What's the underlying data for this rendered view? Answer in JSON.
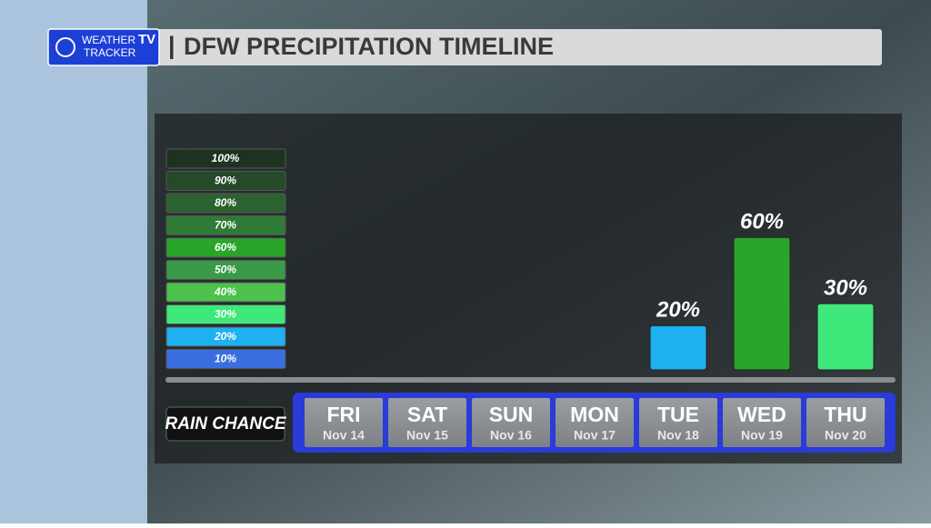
{
  "chart_data": {
    "type": "bar",
    "title": "DFW PRECIPITATION TIMELINE",
    "brand": {
      "line1": "WEATHER",
      "line2": "TRACKER",
      "badge": "TV"
    },
    "row_label": "RAIN CHANCE",
    "categories": [
      "FRI",
      "SAT",
      "SUN",
      "MON",
      "TUE",
      "WED",
      "THU"
    ],
    "dates": [
      "Nov 14",
      "Nov 15",
      "Nov 16",
      "Nov 17",
      "Nov 18",
      "Nov 19",
      "Nov 20"
    ],
    "values": [
      null,
      null,
      null,
      null,
      20,
      60,
      30
    ],
    "value_labels": [
      null,
      null,
      null,
      null,
      "20%",
      "60%",
      "30%"
    ],
    "ylim": [
      0,
      100
    ],
    "color_scale": [
      {
        "value": 100,
        "label": "100%",
        "color": "#1d3320"
      },
      {
        "value": 90,
        "label": "90%",
        "color": "#244a28"
      },
      {
        "value": 80,
        "label": "80%",
        "color": "#2c6230"
      },
      {
        "value": 70,
        "label": "70%",
        "color": "#2f7a35"
      },
      {
        "value": 60,
        "label": "60%",
        "color": "#2aa52a"
      },
      {
        "value": 50,
        "label": "50%",
        "color": "#3a9a48"
      },
      {
        "value": 40,
        "label": "40%",
        "color": "#4cc24c"
      },
      {
        "value": 30,
        "label": "30%",
        "color": "#3ee87a"
      },
      {
        "value": 20,
        "label": "20%",
        "color": "#1fb0f0"
      },
      {
        "value": 10,
        "label": "10%",
        "color": "#3a6ee0"
      }
    ]
  }
}
